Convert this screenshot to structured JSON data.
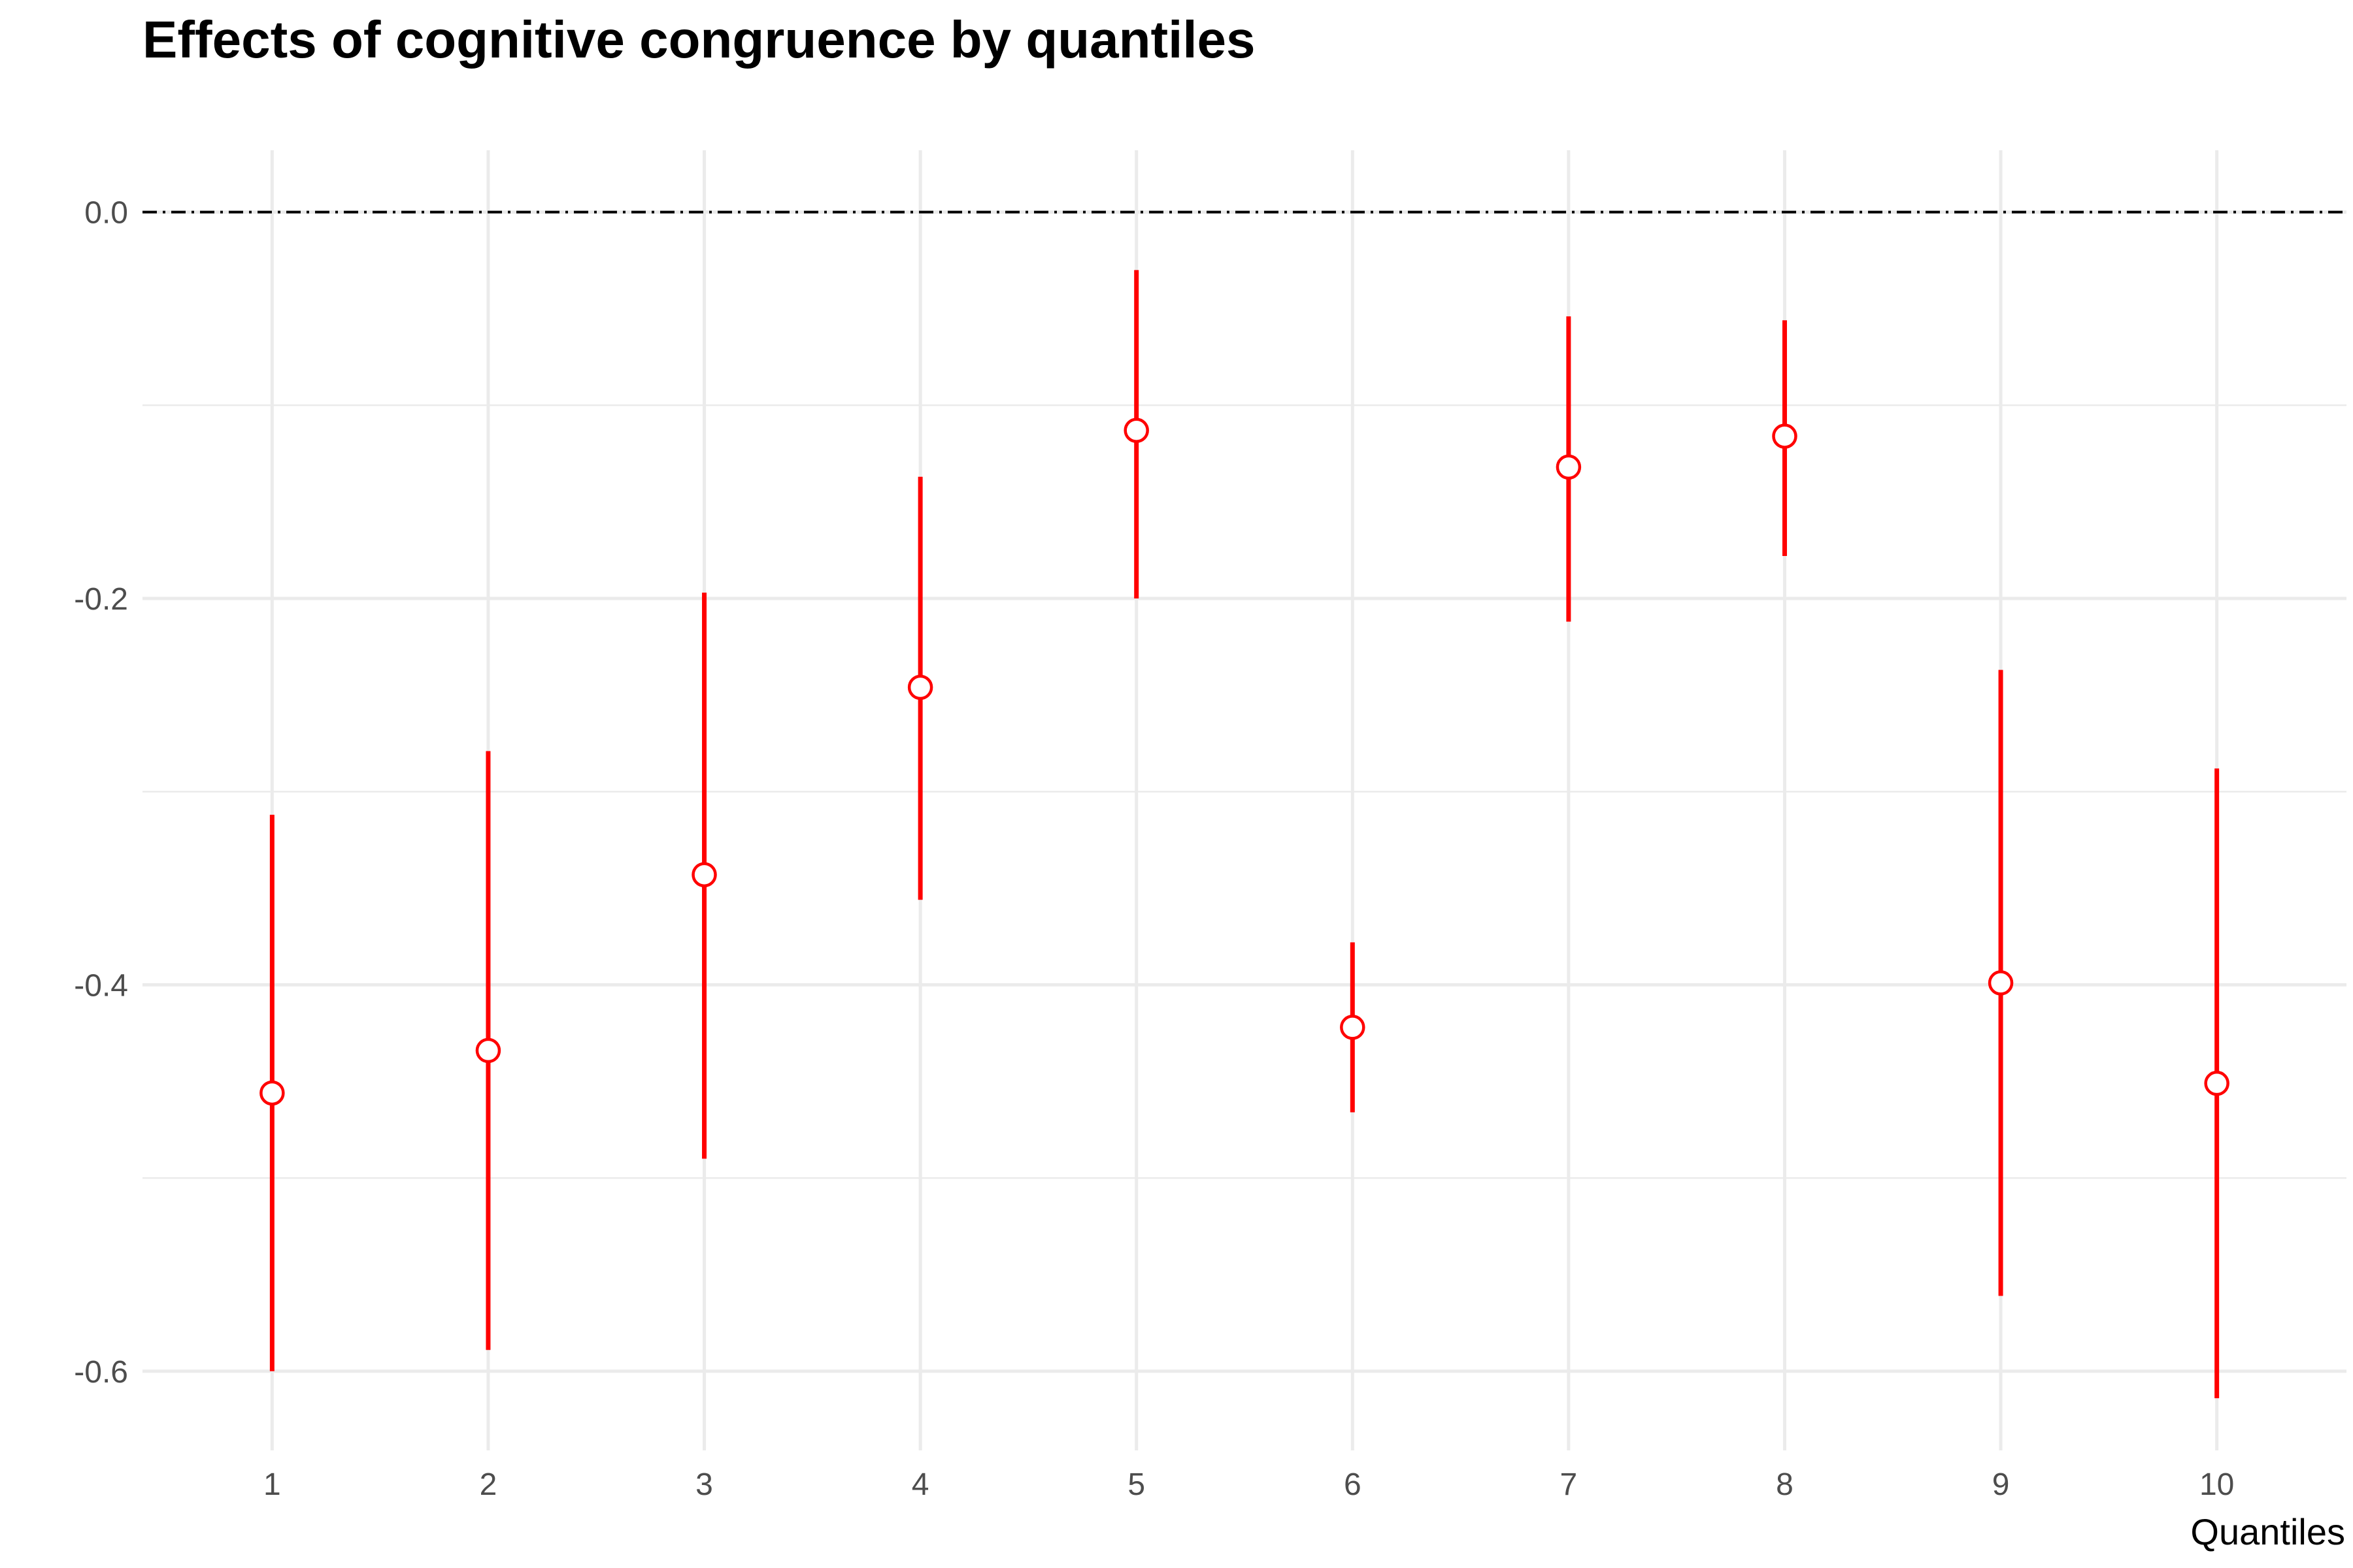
{
  "chart_data": {
    "type": "scatter",
    "title": "Effects of cognitive congruence by quantiles",
    "xlabel": "Quantiles",
    "ylabel": "",
    "x": [
      1,
      2,
      3,
      4,
      5,
      6,
      7,
      8,
      9,
      10
    ],
    "x_tick_labels": [
      "1",
      "2",
      "3",
      "4",
      "5",
      "6",
      "7",
      "8",
      "9",
      "10"
    ],
    "y": [
      -0.456,
      -0.434,
      -0.343,
      -0.246,
      -0.113,
      -0.422,
      -0.132,
      -0.116,
      -0.399,
      -0.451
    ],
    "ymin": [
      -0.6,
      -0.589,
      -0.49,
      -0.356,
      -0.2,
      -0.466,
      -0.212,
      -0.178,
      -0.561,
      -0.614
    ],
    "ymax": [
      -0.312,
      -0.279,
      -0.197,
      -0.137,
      -0.03,
      -0.378,
      -0.054,
      -0.056,
      -0.237,
      -0.288
    ],
    "y_ticks": [
      0.0,
      -0.2,
      -0.4,
      -0.6
    ],
    "y_tick_labels": [
      "0.0",
      "-0.2",
      "-0.4",
      "-0.6"
    ],
    "xlim": [
      0.4,
      10.6
    ],
    "ylim": [
      -0.641,
      0.032
    ],
    "reference_line": 0.0,
    "grid": true,
    "colors": {
      "point_edge": "#ff0000",
      "point_fill": "#ffffff",
      "errorbar": "#ff0000",
      "reference_line": "#000000",
      "grid": "#ebebeb"
    }
  }
}
